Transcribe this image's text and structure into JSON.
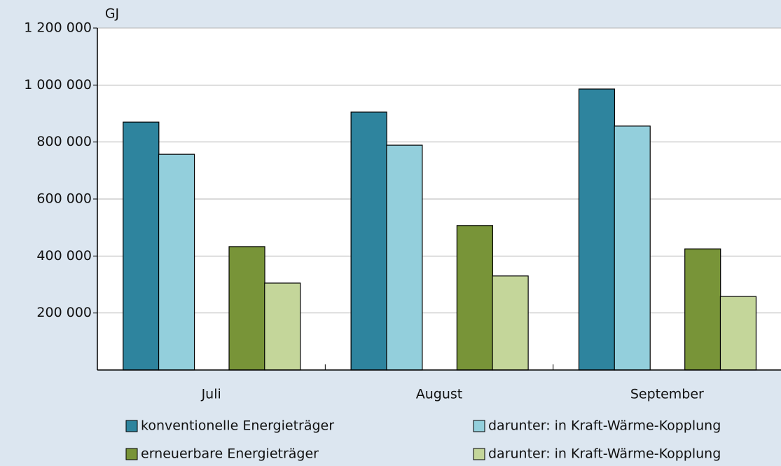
{
  "chart_data": {
    "type": "bar",
    "y_unit": "GJ",
    "categories": [
      "Juli",
      "August",
      "September"
    ],
    "series": [
      {
        "name": "konventionelle Energieträger",
        "color": "#2e849e",
        "values": [
          870000,
          905000,
          986000
        ]
      },
      {
        "name": "darunter: in Kraft-Wärme-Kopplung",
        "color": "#93cfdc",
        "values": [
          757000,
          789000,
          856000
        ]
      },
      {
        "name": "erneuerbare Energieträger",
        "color": "#789438",
        "values": [
          433000,
          507000,
          425000
        ]
      },
      {
        "name": "darunter: in Kraft-Wärme-Kopplung",
        "color": "#c4d69a",
        "values": [
          305000,
          330000,
          258000
        ]
      }
    ],
    "ylim": [
      0,
      1200000
    ],
    "yticks": [
      {
        "value": 200000,
        "label": "200 000"
      },
      {
        "value": 400000,
        "label": "400 000"
      },
      {
        "value": 600000,
        "label": "600 000"
      },
      {
        "value": 800000,
        "label": "800 000"
      },
      {
        "value": 1000000,
        "label": "1 000 000"
      },
      {
        "value": 1200000,
        "label": "1 200 000"
      }
    ],
    "grid": true
  }
}
